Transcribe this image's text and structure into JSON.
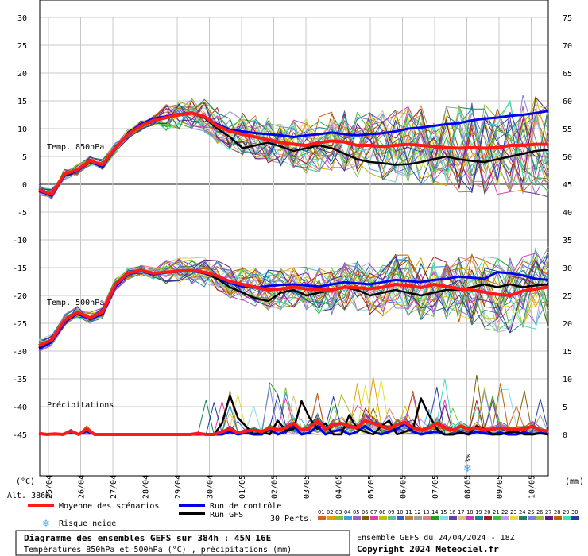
{
  "chart_data": {
    "type": "line",
    "title": "Diagramme des ensembles GEFS sur 384h : 45N 16E",
    "subtitle": "Températures 850hPa et 500hPa (°C) , précipitations (mm)",
    "run_info": "Ensemble GEFS du 24/04/2024 - 18Z",
    "copyright": "Copyright 2024 Meteociel.fr",
    "left_axis": {
      "label": "(°C)",
      "ticks": [
        30,
        25,
        20,
        15,
        10,
        5,
        0,
        -5,
        -10,
        -15,
        -20,
        -25,
        -30,
        -35,
        -40,
        -45
      ],
      "ylim": [
        -45,
        30
      ]
    },
    "right_axis": {
      "label": "(mm)",
      "ticks": [
        75,
        70,
        65,
        60,
        55,
        50,
        45,
        40,
        35,
        30,
        25,
        20,
        15,
        10,
        5,
        0
      ]
    },
    "x_axis": {
      "ticks": [
        "25/04",
        "26/04",
        "27/04",
        "28/04",
        "29/04",
        "30/04",
        "01/05",
        "02/05",
        "03/05",
        "04/05",
        "05/05",
        "06/05",
        "07/05",
        "08/05",
        "09/05",
        "10/05"
      ]
    },
    "altitude_label": "Alt. 386m",
    "panel_labels": {
      "t850": "Temp. 850hPa",
      "t500": "Temp. 500hPa",
      "precip": "Précipitations"
    },
    "legend": {
      "mean": "Moyenne des scénarios",
      "control": "Run de contrôle",
      "gfs": "Run GFS",
      "snow": "Risque neige",
      "perts_label": "30 Perts.",
      "perts": [
        "01",
        "02",
        "03",
        "04",
        "05",
        "06",
        "07",
        "08",
        "09",
        "10",
        "11",
        "12",
        "13",
        "14",
        "15",
        "16",
        "17",
        "18",
        "19",
        "20",
        "21",
        "22",
        "23",
        "24",
        "25",
        "26",
        "27",
        "28",
        "29",
        "30"
      ]
    },
    "snow_risk": {
      "date": "08/05",
      "percent": "3%"
    },
    "colors": {
      "mean": "#ff1a1a",
      "control": "#0000ee",
      "gfs": "#000000",
      "snow": "#3fa9f5",
      "perts": [
        "#e06020",
        "#e0a000",
        "#80c040",
        "#40a0e0",
        "#a060c0",
        "#806000",
        "#e040a0",
        "#c0c000",
        "#60c0a0",
        "#4060c0",
        "#c08040",
        "#a0a0a0",
        "#e08080",
        "#20a020",
        "#80e0e0",
        "#6040a0",
        "#e0c080",
        "#c040c0",
        "#2080a0",
        "#a02020",
        "#40c040",
        "#c0a0e0",
        "#e0e040",
        "#208060",
        "#8080e0",
        "#a0c040",
        "#602080",
        "#c06000",
        "#40e0c0",
        "#2040a0"
      ]
    },
    "series": [
      {
        "name": "Moyenne des scénarios",
        "panel": "t850",
        "values": [
          -1.0,
          -1.8,
          1.8,
          2.6,
          4.2,
          3.5,
          6.5,
          9.0,
          10.5,
          11.5,
          12.0,
          12.5,
          12.8,
          12.2,
          10.5,
          9.5,
          9.0,
          8.5,
          8.0,
          7.5,
          7.2,
          7.0,
          7.5,
          7.8,
          7.6,
          7.0,
          7.0,
          6.8,
          7.0,
          7.2,
          7.0,
          6.8,
          6.6,
          6.5,
          6.6,
          6.5,
          6.6,
          7.0,
          7.0,
          7.2,
          7.2
        ]
      },
      {
        "name": "Run de contrôle",
        "panel": "t850",
        "values": [
          -1.2,
          -2.0,
          1.5,
          2.4,
          4.0,
          3.2,
          6.3,
          9.2,
          10.8,
          11.8,
          12.2,
          12.6,
          12.9,
          12.0,
          10.8,
          9.8,
          9.5,
          9.2,
          9.0,
          8.8,
          8.5,
          8.8,
          9.0,
          9.3,
          9.0,
          8.8,
          9.0,
          9.2,
          9.5,
          10.0,
          10.2,
          10.5,
          10.8,
          11.0,
          11.5,
          11.8,
          12.0,
          12.3,
          12.5,
          12.8,
          13.2
        ]
      },
      {
        "name": "Run GFS",
        "panel": "t850",
        "values": [
          -1.1,
          -1.9,
          1.6,
          2.5,
          4.1,
          3.4,
          6.4,
          9.1,
          10.6,
          11.6,
          12.1,
          12.4,
          12.7,
          12.0,
          10.0,
          8.5,
          6.5,
          7.0,
          7.5,
          6.8,
          6.0,
          6.5,
          7.0,
          6.5,
          5.5,
          4.5,
          4.0,
          3.8,
          3.5,
          3.6,
          4.0,
          4.5,
          5.0,
          4.5,
          4.2,
          4.0,
          4.5,
          5.0,
          5.5,
          6.0,
          6.2
        ]
      },
      {
        "name": "Moyenne des scénarios",
        "panel": "t500",
        "values": [
          -29.0,
          -28.0,
          -24.5,
          -23.0,
          -24.0,
          -23.0,
          -18.0,
          -16.0,
          -15.5,
          -16.0,
          -15.8,
          -15.6,
          -15.5,
          -15.8,
          -16.5,
          -17.5,
          -18.0,
          -18.5,
          -19.0,
          -18.8,
          -18.5,
          -18.8,
          -19.0,
          -19.0,
          -18.5,
          -18.6,
          -18.8,
          -18.5,
          -18.0,
          -18.2,
          -18.6,
          -18.0,
          -18.4,
          -18.8,
          -19.0,
          -19.4,
          -19.8,
          -20.0,
          -19.2,
          -18.8,
          -18.5
        ]
      },
      {
        "name": "Run de contrôle",
        "panel": "t500",
        "values": [
          -29.5,
          -28.4,
          -24.8,
          -23.3,
          -24.2,
          -23.4,
          -18.4,
          -16.2,
          -15.6,
          -16.2,
          -15.9,
          -15.7,
          -15.6,
          -16.0,
          -16.8,
          -17.8,
          -18.4,
          -18.6,
          -18.3,
          -18.1,
          -18.0,
          -18.2,
          -18.4,
          -18.0,
          -17.6,
          -17.8,
          -18.0,
          -17.6,
          -17.2,
          -17.4,
          -17.6,
          -17.2,
          -17.0,
          -16.6,
          -16.8,
          -17.0,
          -15.8,
          -16.0,
          -16.4,
          -17.0,
          -17.2
        ]
      },
      {
        "name": "Run GFS",
        "panel": "t500",
        "values": [
          -29.2,
          -28.1,
          -24.6,
          -23.1,
          -24.1,
          -23.2,
          -18.2,
          -16.1,
          -15.5,
          -16.1,
          -15.8,
          -15.6,
          -15.5,
          -15.9,
          -17.0,
          -18.5,
          -19.5,
          -20.5,
          -21.0,
          -19.5,
          -19.0,
          -20.0,
          -19.5,
          -19.0,
          -18.5,
          -19.0,
          -20.0,
          -19.5,
          -19.0,
          -19.5,
          -20.0,
          -19.5,
          -19.0,
          -19.0,
          -18.5,
          -18.0,
          -18.5,
          -18.0,
          -18.5,
          -18.2,
          -18.0
        ]
      },
      {
        "name": "Moyenne des scénarios",
        "panel": "precip",
        "values": [
          0.2,
          0.0,
          0.1,
          0.0,
          0.6,
          0.0,
          1.0,
          0.0,
          0.0,
          0.0,
          0.0,
          0.0,
          0.0,
          0.0,
          0.0,
          0.0,
          0.0,
          0.0,
          0.0,
          0.0,
          0.2,
          0.0,
          0.0,
          0.5,
          1.0,
          0.3,
          0.6,
          0.8,
          0.5,
          1.2,
          0.8,
          1.2,
          2.0,
          0.8,
          1.2,
          2.5,
          1.0,
          1.8,
          2.0,
          1.5,
          1.2,
          2.5,
          2.0,
          1.5,
          1.0,
          1.8,
          2.2,
          1.2,
          0.8,
          1.2,
          2.0,
          1.2,
          0.8,
          1.5,
          1.0,
          1.2,
          0.8,
          1.0,
          1.2,
          1.0,
          0.9,
          1.0,
          1.5,
          0.8,
          0.6
        ]
      },
      {
        "name": "Run de contrôle",
        "panel": "precip",
        "values": [
          0.1,
          0.0,
          0.0,
          0.0,
          0.4,
          0.0,
          0.6,
          0.0,
          0.0,
          0.0,
          0.0,
          0.0,
          0.0,
          0.0,
          0.0,
          0.0,
          0.0,
          0.0,
          0.0,
          0.0,
          0.0,
          0.0,
          0.0,
          0.0,
          0.5,
          0.0,
          0.3,
          0.0,
          0.0,
          1.0,
          0.0,
          0.5,
          1.5,
          0.0,
          0.3,
          1.5,
          0.0,
          0.6,
          0.8,
          0.0,
          0.5,
          1.5,
          0.5,
          0.0,
          0.5,
          1.0,
          2.0,
          0.5,
          0.0,
          0.3,
          0.5,
          0.0,
          0.0,
          0.4,
          0.0,
          0.5,
          0.2,
          0.0,
          0.3,
          0.0,
          0.0,
          0.4,
          0.0,
          0.3,
          0.0
        ]
      },
      {
        "name": "Run GFS",
        "panel": "precip",
        "values": [
          0.1,
          0.0,
          0.0,
          0.0,
          0.5,
          0.0,
          0.8,
          0.0,
          0.0,
          0.0,
          0.0,
          0.0,
          0.0,
          0.0,
          0.0,
          0.0,
          0.0,
          0.0,
          0.0,
          0.0,
          0.3,
          0.0,
          0.0,
          2.0,
          7.0,
          3.0,
          1.5,
          0.0,
          0.5,
          0.0,
          2.5,
          0.8,
          1.0,
          6.0,
          3.0,
          1.0,
          2.0,
          0.0,
          0.0,
          3.5,
          1.0,
          0.5,
          0.0,
          1.5,
          2.5,
          0.0,
          0.5,
          1.0,
          6.5,
          3.5,
          1.0,
          0.0,
          0.0,
          0.3,
          0.0,
          1.5,
          1.0,
          0.0,
          0.0,
          0.4,
          0.5,
          0.0,
          0.0,
          0.2,
          0.0
        ]
      }
    ]
  }
}
